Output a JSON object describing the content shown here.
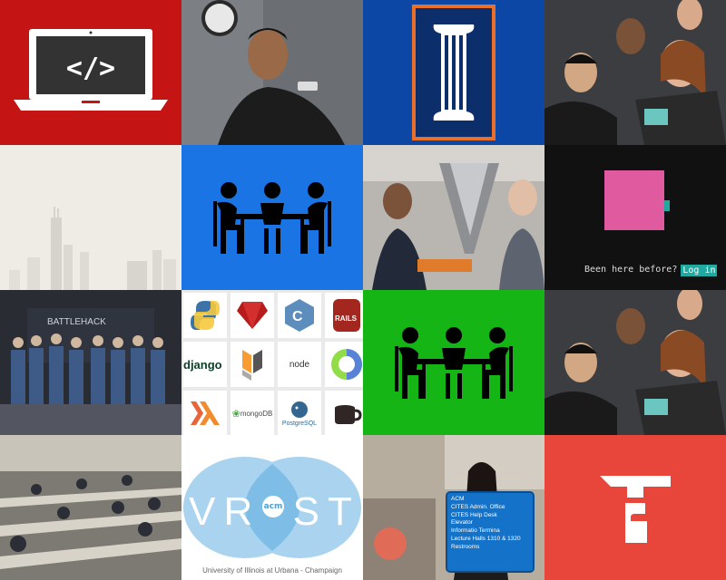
{
  "tiles": {
    "code_label": "</>",
    "been_here": {
      "prompt": "Been here before?",
      "login": "Log in"
    },
    "logos": {
      "django": "django",
      "node": "node",
      "mongodb": "mongoDB",
      "postgresql": "PostgreSQL"
    },
    "vrost": {
      "letters": [
        "V",
        "R",
        "S",
        "T"
      ],
      "badge": "acm",
      "subtitle": "University of Illinois at Urbana - Champaign"
    },
    "sign": {
      "lines": [
        "ACM",
        "CITES Admin. Office",
        "CITES Help Desk",
        "Elevator",
        "Informatio Termina",
        "Lecture Halls 1310 & 1320",
        "Restrooms"
      ]
    }
  },
  "colors": {
    "red": "#c41414",
    "blue": "#1b74e4",
    "illinois_blue": "#0c47a6",
    "illinois_orange": "#e8702a",
    "green": "#15b515",
    "coral": "#e8453b",
    "pink": "#e05aa0",
    "teal": "#1fa9a0"
  },
  "icons": [
    "laptop-code-icon",
    "illinois-i-logo",
    "meeting-table-icon",
    "pink-square-icon",
    "python-logo",
    "ruby-logo",
    "cpp-logo",
    "rails-logo",
    "hive-logo",
    "clojure-logo",
    "haskell-logo",
    "mongodb-leaf-logo",
    "postgresql-elephant-logo",
    "coffeescript-logo",
    "hammer-t-logo"
  ]
}
